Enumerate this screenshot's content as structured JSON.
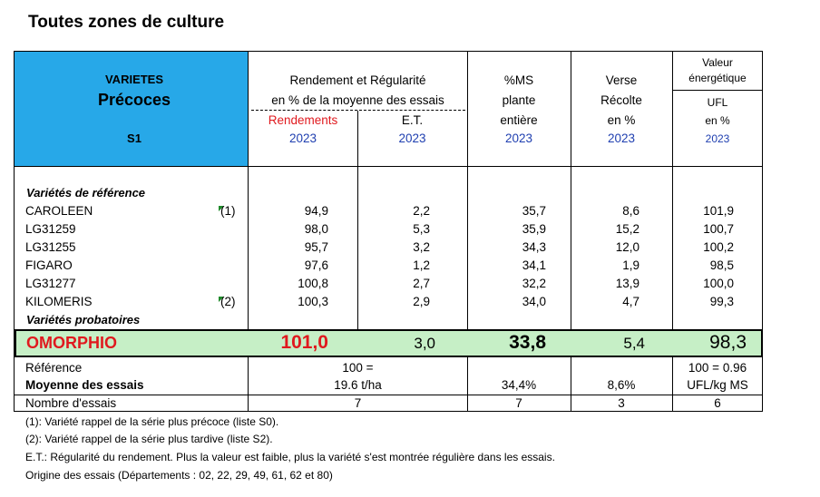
{
  "page_title": "Toutes zones de culture",
  "header": {
    "varietes": "VARIETES",
    "precoces": "Précoces",
    "s1": "S1",
    "rendement_line1": "Rendement et Régularité",
    "rendement_line2": "en % de la moyenne des essais",
    "rendements": "Rendements",
    "et": "E.T.",
    "ms_line1": "%MS",
    "ms_line2": "plante",
    "ms_line3": "entière",
    "verse_line1": "Verse",
    "verse_line2": "Récolte",
    "verse_line3": "en %",
    "valeur_line1": "Valeur",
    "valeur_line2": "énergétique",
    "valeur_line3": "UFL",
    "valeur_line4": "en %",
    "year": "2023"
  },
  "reference_label": "Variétés de référence",
  "reference_rows": [
    {
      "name": "CAROLEEN",
      "note": "(1)",
      "rendement": "94,9",
      "et": "2,2",
      "ms": "35,7",
      "verse": "8,6",
      "ufl": "101,9"
    },
    {
      "name": "LG31259",
      "note": "",
      "rendement": "98,0",
      "et": "5,3",
      "ms": "35,9",
      "verse": "15,2",
      "ufl": "100,7"
    },
    {
      "name": "LG31255",
      "note": "",
      "rendement": "95,7",
      "et": "3,2",
      "ms": "34,3",
      "verse": "12,0",
      "ufl": "100,2"
    },
    {
      "name": "FIGARO",
      "note": "",
      "rendement": "97,6",
      "et": "1,2",
      "ms": "34,1",
      "verse": "1,9",
      "ufl": "98,5"
    },
    {
      "name": "LG31277",
      "note": "",
      "rendement": "100,8",
      "et": "2,7",
      "ms": "32,2",
      "verse": "13,9",
      "ufl": "100,0"
    },
    {
      "name": "KILOMERIS",
      "note": "(2)",
      "rendement": "100,3",
      "et": "2,9",
      "ms": "34,0",
      "verse": "4,7",
      "ufl": "99,3"
    }
  ],
  "probatoires_label": "Variétés probatoires",
  "highlight": {
    "name": "OMORPHIO",
    "rendement": "101,0",
    "et": "3,0",
    "ms": "33,8",
    "verse": "5,4",
    "ufl": "98,3"
  },
  "bottom": {
    "reference_label": "Référence",
    "reference_value": "100 =",
    "ufl_reference": "100 = 0.96",
    "moyenne_label": "Moyenne des essais",
    "moyenne_rendement": "19.6 t/ha",
    "moyenne_ms": "34,4%",
    "moyenne_verse": "8,6%",
    "moyenne_ufl": "UFL/kg MS",
    "nombre_label": "Nombre d'essais",
    "nombre_rendement": "7",
    "nombre_ms": "7",
    "nombre_verse": "3",
    "nombre_ufl": "6"
  },
  "footnotes": [
    "(1): Variété rappel de la série plus précoce (liste S0).",
    "(2): Variété rappel de la série plus tardive (liste S2).",
    "E.T.: Régularité du rendement. Plus la valeur est faible, plus la variété s'est montrée régulière dans les essais.",
    "Origine des essais (Départements : 02, 22, 29, 49, 61, 62 et 80)"
  ],
  "colors": {
    "header_blue": "#27a8e8",
    "highlight_green": "#c6efc6",
    "red": "#e0191e",
    "blue_year": "#1f3fb0"
  }
}
